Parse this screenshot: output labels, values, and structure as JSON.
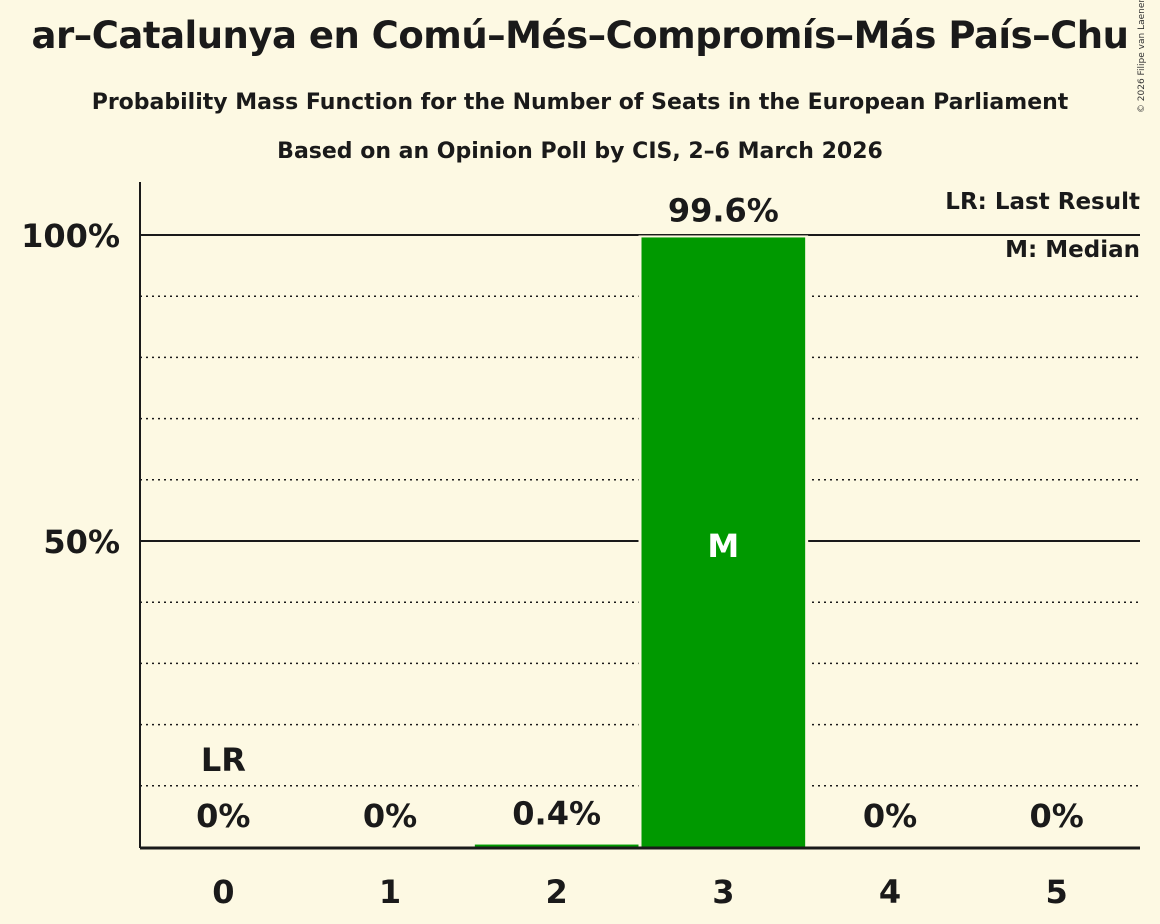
{
  "chart_data": {
    "type": "bar",
    "title": "ar–Catalunya en Comú–Més–Compromís–Más País–Chu",
    "subtitle": "Probability Mass Function for the Number of Seats in the European Parliament",
    "subtitle2": "Based on an Opinion Poll by CIS, 2–6 March 2026",
    "categories": [
      "0",
      "1",
      "2",
      "3",
      "4",
      "5"
    ],
    "values": [
      0,
      0,
      0.4,
      99.6,
      0,
      0
    ],
    "value_labels": [
      "0%",
      "0%",
      "0.4%",
      "99.6%",
      "0%",
      "0%"
    ],
    "ylim": [
      0,
      100
    ],
    "yticks": [
      {
        "value": 50,
        "label": "50%"
      },
      {
        "value": 100,
        "label": "100%"
      }
    ],
    "minor_gridlines": [
      10,
      20,
      30,
      40,
      60,
      70,
      80,
      90
    ],
    "last_result_index": 0,
    "last_result_label": "LR",
    "median_index": 3,
    "median_label": "M",
    "legend": [
      "LR: Last Result",
      "M: Median"
    ],
    "legend_position": "top-right",
    "bar_color": "#009900",
    "copyright": "© 2026 Filipe van Laenen"
  }
}
